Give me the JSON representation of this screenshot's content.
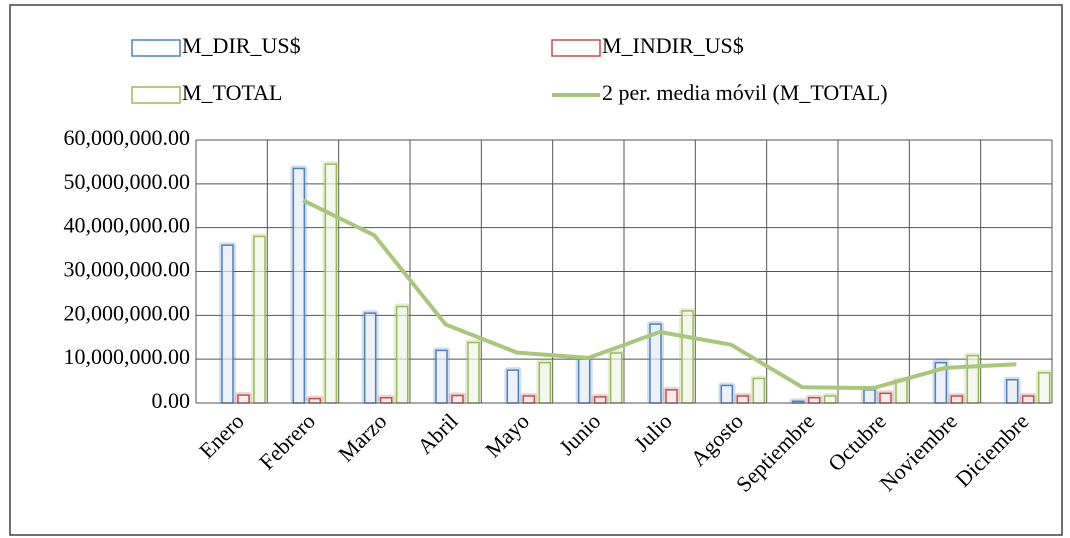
{
  "chart_data": {
    "type": "bar",
    "categories": [
      "Enero",
      "Febrero",
      "Marzo",
      "Abril",
      "Mayo",
      "Junio",
      "Julio",
      "Agosto",
      "Septiembre",
      "Octubre",
      "Noviembre",
      "Diciembre"
    ],
    "series": [
      {
        "name": "M_DIR_US$",
        "color": "#4f81bd",
        "values": [
          36000000,
          53500000,
          20500000,
          12000000,
          7500000,
          10000000,
          18000000,
          4000000,
          400000,
          3000000,
          9200000,
          5300000
        ]
      },
      {
        "name": "M_INDIR_US$",
        "color": "#c0504d",
        "values": [
          1800000,
          1000000,
          1200000,
          1700000,
          1600000,
          1400000,
          3000000,
          1600000,
          1200000,
          2200000,
          1600000,
          1600000
        ]
      },
      {
        "name": "M_TOTAL",
        "color": "#9bbb59",
        "values": [
          38000000,
          54500000,
          22000000,
          13800000,
          9200000,
          11400000,
          21000000,
          5600000,
          1600000,
          5200000,
          10800000,
          6900000
        ]
      },
      {
        "name": "2 per. media móvil (M_TOTAL)",
        "type": "line",
        "color": "#a9c77a",
        "values": [
          null,
          46250000,
          38250000,
          17900000,
          11500000,
          10300000,
          16200000,
          13300000,
          3600000,
          3400000,
          8000000,
          8850000
        ]
      }
    ],
    "ylim": [
      0,
      60000000
    ],
    "yticks": [
      {
        "value": 0,
        "label": "0.00"
      },
      {
        "value": 10000000,
        "label": "10,000,000.00"
      },
      {
        "value": 20000000,
        "label": "20,000,000.00"
      },
      {
        "value": 30000000,
        "label": "30,000,000.00"
      },
      {
        "value": 40000000,
        "label": "40,000,000.00"
      },
      {
        "value": 50000000,
        "label": "50,000,000.00"
      },
      {
        "value": 60000000,
        "label": "60,000,000.00"
      }
    ],
    "grid": true,
    "legend": "top"
  }
}
